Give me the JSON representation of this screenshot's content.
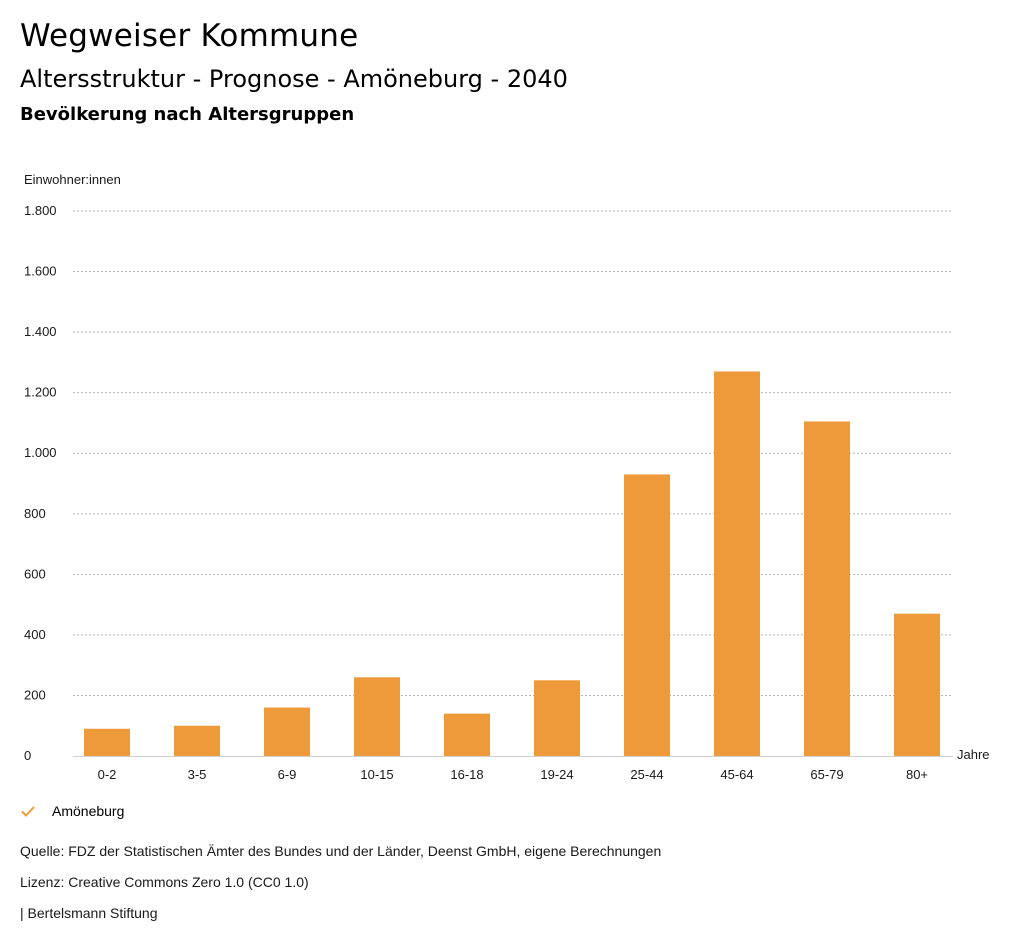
{
  "header": {
    "title": "Wegweiser Kommune",
    "subtitle": "Altersstruktur - Prognose - Amöneburg - 2040",
    "section": "Bevölkerung nach Altersgruppen"
  },
  "chart_data": {
    "type": "bar",
    "categories": [
      "0-2",
      "3-5",
      "6-9",
      "10-15",
      "16-18",
      "19-24",
      "25-44",
      "45-64",
      "65-79",
      "80+"
    ],
    "series": [
      {
        "name": "Amöneburg",
        "color": "#ee9a3a",
        "values": [
          90,
          100,
          160,
          260,
          140,
          250,
          930,
          1270,
          1105,
          470
        ]
      }
    ],
    "ylabel": "Einwohner:innen",
    "xlabel": "Jahre",
    "ylim": [
      0,
      1800
    ],
    "yticks": [
      0,
      200,
      400,
      600,
      800,
      1000,
      1200,
      1400,
      1600,
      1800
    ],
    "ytick_labels": [
      "0",
      "200",
      "400",
      "600",
      "800",
      "1.000",
      "1.200",
      "1.400",
      "1.600",
      "1.800"
    ],
    "grid": true,
    "legend_position": "bottom-left"
  },
  "legend": {
    "label": "Amöneburg",
    "icon": "check-icon"
  },
  "footer": {
    "source": "Quelle: FDZ der Statistischen Ämter des Bundes und der Länder, Deenst GmbH, eigene Berechnungen",
    "license": "Lizenz: Creative Commons Zero 1.0 (CC0 1.0)",
    "publisher": "| Bertelsmann Stiftung"
  }
}
